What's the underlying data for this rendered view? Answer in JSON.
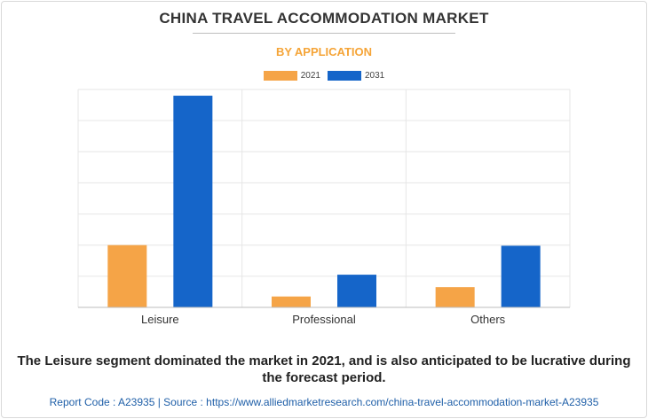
{
  "header": {
    "title": "CHINA TRAVEL ACCOMMODATION MARKET",
    "subtitle": "BY APPLICATION"
  },
  "legend": [
    {
      "label": "2021",
      "color": "#f5a447"
    },
    {
      "label": "2031",
      "color": "#1565c9"
    }
  ],
  "chart_data": {
    "type": "bar",
    "title": "CHINA TRAVEL ACCOMMODATION MARKET",
    "subtitle": "BY APPLICATION",
    "categories": [
      "Leisure",
      "Professional",
      "Others"
    ],
    "series": [
      {
        "name": "2021",
        "color": "#f5a447",
        "values": [
          2.0,
          0.35,
          0.65
        ]
      },
      {
        "name": "2031",
        "color": "#1565c9",
        "values": [
          6.8,
          1.05,
          1.98
        ]
      }
    ],
    "ylim": [
      0,
      7
    ],
    "y_gridlines": 7,
    "grid": true,
    "legend_position": "top-center"
  },
  "caption": "The Leisure segment dominated the market in 2021, and is also anticipated to be lucrative during the forecast period.",
  "footer": "Report Code : A23935   |   Source : https://www.alliedmarketresearch.com/china-travel-accommodation-market-A23935"
}
